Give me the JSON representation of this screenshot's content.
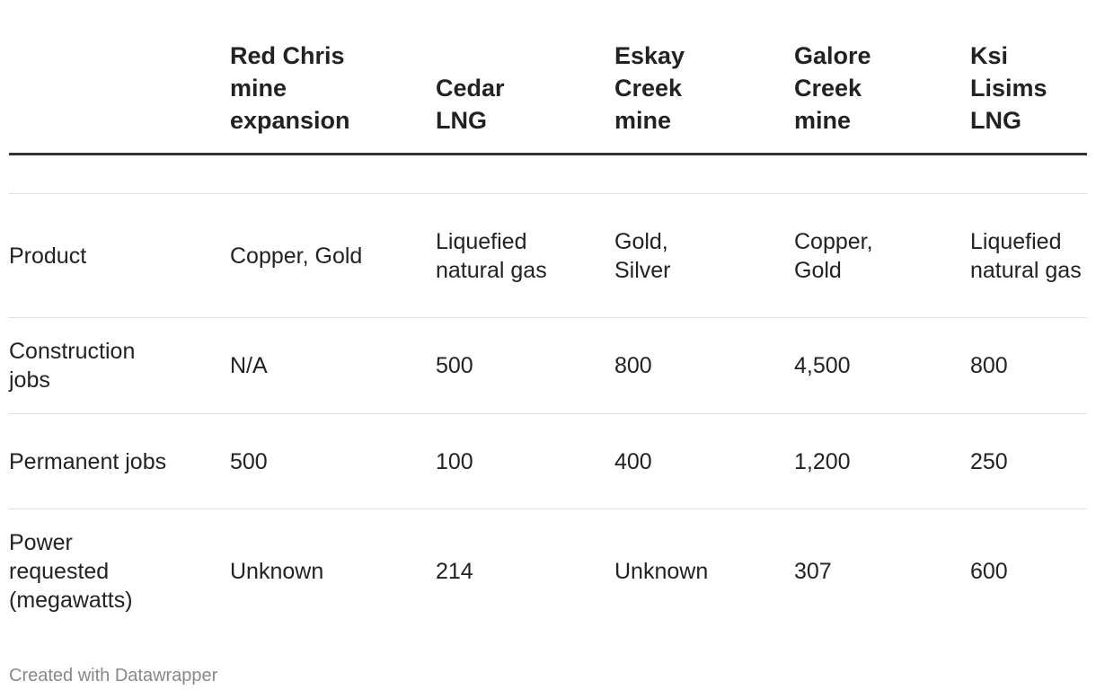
{
  "table": {
    "columns": [
      "Red Chris mine expansion",
      "Cedar LNG",
      "Eskay Creek mine",
      "Galore Creek mine",
      "Ksi Lisims LNG"
    ],
    "rows": [
      [
        "Product",
        "Copper, Gold",
        "Liquefied natural gas",
        "Gold, Silver",
        "Copper, Gold",
        "Liquefied natural gas"
      ],
      [
        "Construction jobs",
        "N/A",
        "500",
        "800",
        "4,500",
        "800"
      ],
      [
        "Permanent jobs",
        "500",
        "100",
        "400",
        "1,200",
        "250"
      ],
      [
        "Power requested (megawatts)",
        "Unknown",
        "214",
        "Unknown",
        "307",
        "600"
      ]
    ]
  },
  "footer": "Created with Datawrapper"
}
